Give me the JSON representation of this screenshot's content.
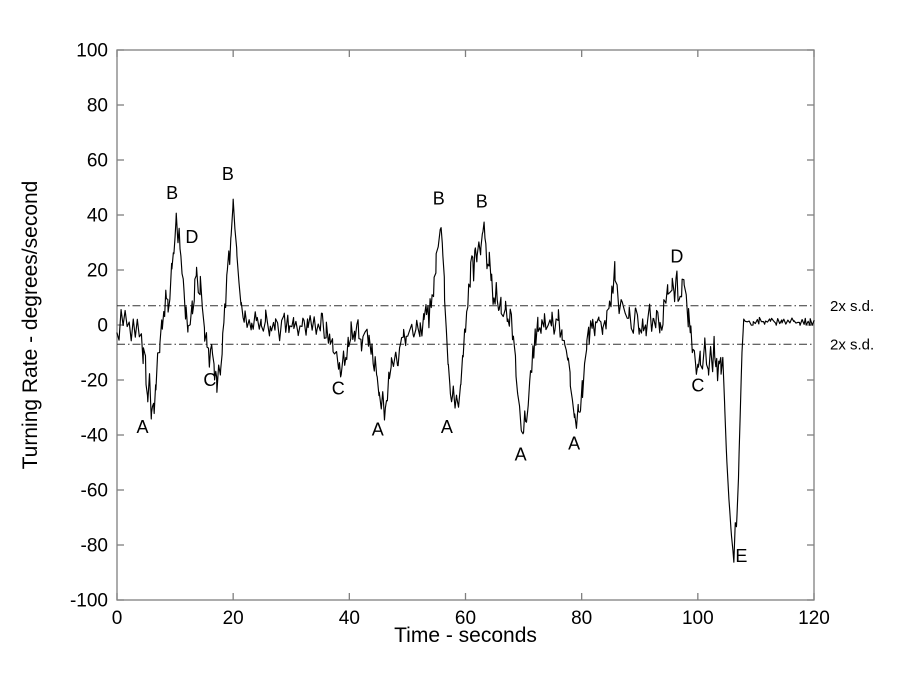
{
  "page": {
    "background": "#ffffff"
  },
  "chart_data": {
    "type": "line",
    "title": "",
    "xlabel": "Time - seconds",
    "ylabel": "Turning Rate - degrees/second",
    "xlim": [
      0,
      120
    ],
    "ylim": [
      -100,
      100
    ],
    "xticks": [
      0,
      20,
      40,
      60,
      80,
      100,
      120
    ],
    "yticks": [
      -100,
      -80,
      -60,
      -40,
      -20,
      0,
      20,
      40,
      60,
      80,
      100
    ],
    "grid": false,
    "legend_position": "none",
    "line_color": "#000000",
    "axis_color": "#7f7f7f",
    "threshold_color": "#333333",
    "thresholds": [
      {
        "value": 7,
        "label": "2x s.d.",
        "style": "dash-dot"
      },
      {
        "value": -7,
        "label": "2x s.d.",
        "style": "dash-dot"
      }
    ],
    "annotations": [
      {
        "text": "A",
        "x": 4.4,
        "y": -37
      },
      {
        "text": "B",
        "x": 9.5,
        "y": 48
      },
      {
        "text": "D",
        "x": 12.9,
        "y": 32
      },
      {
        "text": "C",
        "x": 16.0,
        "y": -20
      },
      {
        "text": "B",
        "x": 19.1,
        "y": 55
      },
      {
        "text": "C",
        "x": 38.1,
        "y": -23
      },
      {
        "text": "A",
        "x": 44.9,
        "y": -38
      },
      {
        "text": "B",
        "x": 55.4,
        "y": 46
      },
      {
        "text": "A",
        "x": 56.8,
        "y": -37
      },
      {
        "text": "B",
        "x": 62.8,
        "y": 45
      },
      {
        "text": "A",
        "x": 69.5,
        "y": -47
      },
      {
        "text": "A",
        "x": 78.7,
        "y": -43
      },
      {
        "text": "D",
        "x": 96.4,
        "y": 25
      },
      {
        "text": "C",
        "x": 100.0,
        "y": -22
      },
      {
        "text": "E",
        "x": 107.5,
        "y": -84
      }
    ],
    "series": [
      {
        "name": "turning-rate",
        "keypoints": [
          [
            0,
            1
          ],
          [
            0.35,
            -2
          ],
          [
            0.7,
            4
          ],
          [
            1.05,
            0
          ],
          [
            1.4,
            5
          ],
          [
            1.75,
            -1
          ],
          [
            2.1,
            3
          ],
          [
            2.45,
            -3
          ],
          [
            2.8,
            2
          ],
          [
            3.15,
            -2
          ],
          [
            3.5,
            1
          ],
          [
            3.85,
            -4
          ],
          [
            4.2,
            -7
          ],
          [
            4.5,
            -12
          ],
          [
            4.8,
            -8
          ],
          [
            5.0,
            -20
          ],
          [
            5.3,
            -27
          ],
          [
            5.6,
            -21
          ],
          [
            5.9,
            -34
          ],
          [
            6.1,
            -28
          ],
          [
            6.4,
            -31
          ],
          [
            6.7,
            -23
          ],
          [
            7.0,
            -14
          ],
          [
            7.4,
            -7
          ],
          [
            7.8,
            0
          ],
          [
            8.2,
            6
          ],
          [
            8.5,
            11
          ],
          [
            8.8,
            6
          ],
          [
            9.1,
            13
          ],
          [
            9.4,
            19
          ],
          [
            9.7,
            25
          ],
          [
            10.0,
            32
          ],
          [
            10.2,
            39
          ],
          [
            10.45,
            31
          ],
          [
            10.7,
            34
          ],
          [
            11.0,
            25
          ],
          [
            11.4,
            15
          ],
          [
            11.8,
            6
          ],
          [
            12.2,
            -2
          ],
          [
            12.6,
            2
          ],
          [
            13.0,
            8
          ],
          [
            13.4,
            14
          ],
          [
            13.7,
            20
          ],
          [
            14.0,
            11
          ],
          [
            14.3,
            15
          ],
          [
            14.7,
            5
          ],
          [
            15.1,
            -3
          ],
          [
            15.5,
            -8
          ],
          [
            15.9,
            -13
          ],
          [
            16.3,
            -10
          ],
          [
            16.7,
            -15
          ],
          [
            17.0,
            -19
          ],
          [
            17.2,
            -22
          ],
          [
            17.5,
            -15
          ],
          [
            17.8,
            -18
          ],
          [
            18.1,
            -8
          ],
          [
            18.4,
            1
          ],
          [
            18.7,
            9
          ],
          [
            19.0,
            17
          ],
          [
            19.2,
            27
          ],
          [
            19.4,
            22
          ],
          [
            19.65,
            33
          ],
          [
            20.0,
            45
          ],
          [
            20.3,
            36
          ],
          [
            20.6,
            27
          ],
          [
            21.0,
            15
          ],
          [
            21.4,
            8
          ],
          [
            21.9,
            3
          ],
          [
            22.5,
            1
          ],
          [
            23.2,
            -2
          ],
          [
            24.0,
            2
          ],
          [
            24.8,
            -1
          ],
          [
            25.6,
            2
          ],
          [
            26.4,
            -2
          ],
          [
            27.2,
            1
          ],
          [
            28.0,
            -2
          ],
          [
            28.8,
            2
          ],
          [
            29.6,
            -1
          ],
          [
            30.4,
            1
          ],
          [
            31.2,
            -2
          ],
          [
            32.0,
            2
          ],
          [
            32.8,
            -1
          ],
          [
            33.6,
            1
          ],
          [
            34.4,
            -2
          ],
          [
            35.2,
            1
          ],
          [
            36.0,
            -2
          ],
          [
            36.6,
            -4
          ],
          [
            37.2,
            -8
          ],
          [
            37.8,
            -13
          ],
          [
            38.3,
            -16
          ],
          [
            38.6,
            -18
          ],
          [
            39.0,
            -10
          ],
          [
            39.4,
            -14
          ],
          [
            39.8,
            -6
          ],
          [
            40.3,
            -2
          ],
          [
            40.9,
            -5
          ],
          [
            41.5,
            -2
          ],
          [
            42.1,
            -6
          ],
          [
            42.7,
            -2
          ],
          [
            43.3,
            -5
          ],
          [
            43.9,
            -9
          ],
          [
            44.3,
            -13
          ],
          [
            44.7,
            -18
          ],
          [
            45.1,
            -24
          ],
          [
            45.5,
            -29
          ],
          [
            45.75,
            -25
          ],
          [
            46.05,
            -33
          ],
          [
            46.4,
            -27
          ],
          [
            46.8,
            -19
          ],
          [
            47.2,
            -14
          ],
          [
            47.6,
            -18
          ],
          [
            48.0,
            -11
          ],
          [
            48.4,
            -14
          ],
          [
            48.8,
            -7
          ],
          [
            49.3,
            -3
          ],
          [
            49.8,
            -6
          ],
          [
            50.4,
            -1
          ],
          [
            51.0,
            -4
          ],
          [
            51.6,
            0
          ],
          [
            52.2,
            -3
          ],
          [
            52.8,
            2
          ],
          [
            53.3,
            6
          ],
          [
            53.7,
            3
          ],
          [
            54.1,
            9
          ],
          [
            54.5,
            14
          ],
          [
            54.9,
            21
          ],
          [
            55.3,
            29
          ],
          [
            55.8,
            37
          ],
          [
            56.1,
            26
          ],
          [
            56.4,
            12
          ],
          [
            56.7,
            -2
          ],
          [
            57.0,
            -14
          ],
          [
            57.3,
            -24
          ],
          [
            57.6,
            -28
          ],
          [
            57.9,
            -23
          ],
          [
            58.2,
            -31
          ],
          [
            58.5,
            -26
          ],
          [
            58.8,
            -29
          ],
          [
            59.2,
            -18
          ],
          [
            59.6,
            -9
          ],
          [
            60.0,
            -1
          ],
          [
            60.4,
            8
          ],
          [
            60.8,
            17
          ],
          [
            61.1,
            26
          ],
          [
            61.4,
            20
          ],
          [
            61.7,
            28
          ],
          [
            62.0,
            23
          ],
          [
            62.3,
            31
          ],
          [
            62.6,
            26
          ],
          [
            62.9,
            33
          ],
          [
            63.2,
            37
          ],
          [
            63.5,
            28
          ],
          [
            63.8,
            20
          ],
          [
            64.1,
            25
          ],
          [
            64.5,
            15
          ],
          [
            64.9,
            8
          ],
          [
            65.3,
            13
          ],
          [
            65.7,
            5
          ],
          [
            66.1,
            9
          ],
          [
            66.5,
            2
          ],
          [
            66.9,
            7
          ],
          [
            67.3,
            0
          ],
          [
            67.7,
            4
          ],
          [
            68.1,
            -4
          ],
          [
            68.4,
            -10
          ],
          [
            68.7,
            -17
          ],
          [
            69.0,
            -24
          ],
          [
            69.3,
            -31
          ],
          [
            69.6,
            -38
          ],
          [
            69.9,
            -41
          ],
          [
            70.2,
            -33
          ],
          [
            70.5,
            -37
          ],
          [
            70.8,
            -28
          ],
          [
            71.2,
            -19
          ],
          [
            71.6,
            -11
          ],
          [
            72.0,
            -5
          ],
          [
            72.5,
            0
          ],
          [
            73.0,
            -3
          ],
          [
            73.6,
            2
          ],
          [
            74.2,
            -2
          ],
          [
            74.8,
            3
          ],
          [
            75.4,
            -1
          ],
          [
            76.0,
            2
          ],
          [
            76.6,
            -3
          ],
          [
            77.1,
            -7
          ],
          [
            77.6,
            -12
          ],
          [
            78.0,
            -18
          ],
          [
            78.4,
            -26
          ],
          [
            78.8,
            -33
          ],
          [
            79.1,
            -37
          ],
          [
            79.4,
            -30
          ],
          [
            79.7,
            -33
          ],
          [
            80.1,
            -24
          ],
          [
            80.5,
            -15
          ],
          [
            80.9,
            -8
          ],
          [
            81.3,
            -3
          ],
          [
            81.8,
            1
          ],
          [
            82.4,
            -2
          ],
          [
            83.0,
            2
          ],
          [
            83.6,
            -2
          ],
          [
            84.2,
            2
          ],
          [
            84.8,
            7
          ],
          [
            85.2,
            12
          ],
          [
            85.7,
            20
          ],
          [
            86.1,
            11
          ],
          [
            86.5,
            6
          ],
          [
            87.0,
            9
          ],
          [
            87.5,
            2
          ],
          [
            88.1,
            5
          ],
          [
            88.7,
            -2
          ],
          [
            89.3,
            3
          ],
          [
            89.9,
            -3
          ],
          [
            90.5,
            2
          ],
          [
            91.1,
            -2
          ],
          [
            91.7,
            4
          ],
          [
            92.3,
            -1
          ],
          [
            92.9,
            3
          ],
          [
            93.5,
            -2
          ],
          [
            94.0,
            4
          ],
          [
            94.4,
            9
          ],
          [
            94.8,
            13
          ],
          [
            95.2,
            8
          ],
          [
            95.6,
            15
          ],
          [
            96.0,
            11
          ],
          [
            96.4,
            16
          ],
          [
            96.8,
            9
          ],
          [
            97.2,
            13
          ],
          [
            97.6,
            16
          ],
          [
            98.0,
            8
          ],
          [
            98.4,
            2
          ],
          [
            98.8,
            -4
          ],
          [
            99.2,
            -9
          ],
          [
            99.6,
            -13
          ],
          [
            100.0,
            -17
          ],
          [
            100.4,
            -10
          ],
          [
            100.8,
            -14
          ],
          [
            101.2,
            -7
          ],
          [
            101.5,
            -13
          ],
          [
            101.8,
            -19
          ],
          [
            102.2,
            -10
          ],
          [
            102.5,
            -15
          ],
          [
            102.8,
            -7
          ],
          [
            103.1,
            -13
          ],
          [
            103.4,
            -19
          ],
          [
            103.7,
            -11
          ],
          [
            104.0,
            -16
          ],
          [
            104.3,
            -10
          ],
          [
            104.6,
            -28
          ],
          [
            104.9,
            -45
          ],
          [
            105.2,
            -58
          ],
          [
            105.5,
            -68
          ],
          [
            105.8,
            -77
          ],
          [
            106.2,
            -86
          ],
          [
            106.45,
            -72
          ],
          [
            106.65,
            -74
          ],
          [
            107.0,
            -55
          ],
          [
            107.3,
            -32
          ],
          [
            107.6,
            -10
          ],
          [
            107.9,
            1
          ],
          [
            108.5,
            1.5
          ],
          [
            109.5,
            0.8
          ],
          [
            110.5,
            1.6
          ],
          [
            111.5,
            0.9
          ],
          [
            112.5,
            1.5
          ],
          [
            113.5,
            1.0
          ],
          [
            114.5,
            1.7
          ],
          [
            115.5,
            0.9
          ],
          [
            116.5,
            1.4
          ],
          [
            117.5,
            0.8
          ],
          [
            118.5,
            1.3
          ],
          [
            119.3,
            1.0
          ],
          [
            120,
            1.2
          ]
        ],
        "noise": {
          "seed": 7,
          "sample_dt": 0.35,
          "segments": [
            {
              "t0": 0,
              "t1": 104.3,
              "amp": 4.0
            },
            {
              "t0": 104.3,
              "t1": 107.8,
              "amp": 1.5
            },
            {
              "t0": 107.8,
              "t1": 120,
              "amp": 1.3
            }
          ],
          "damp_above_abs": 25,
          "damp_factor": 0.45
        }
      }
    ]
  }
}
